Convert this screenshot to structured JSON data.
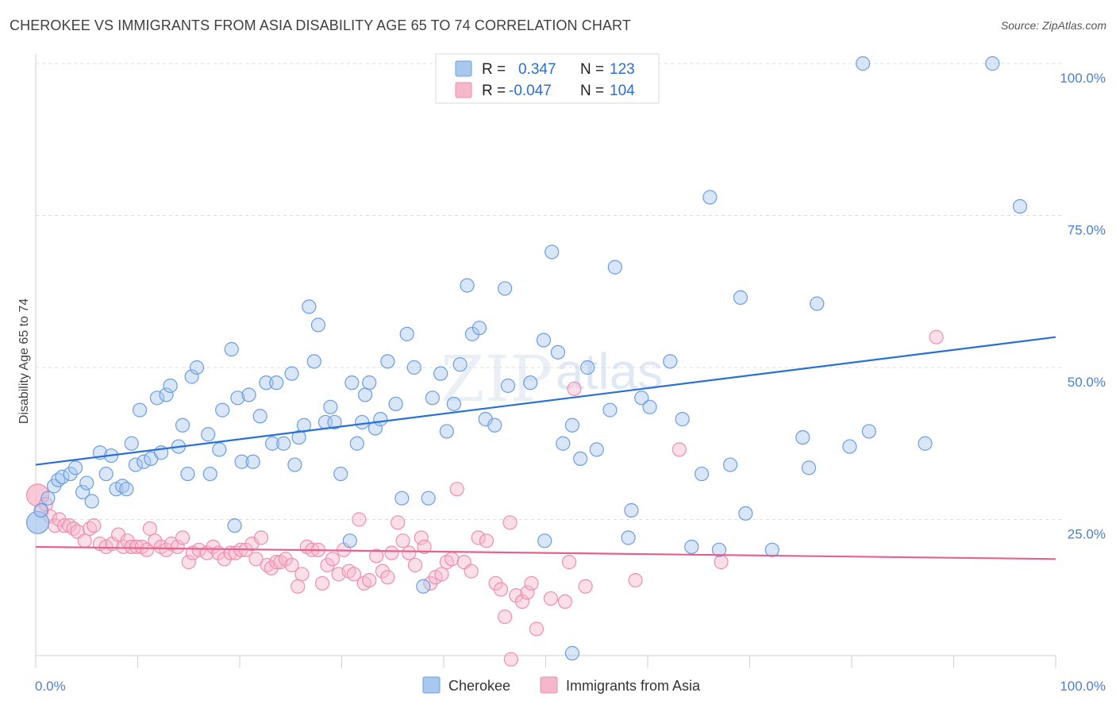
{
  "title": "CHEROKEE VS IMMIGRANTS FROM ASIA DISABILITY AGE 65 TO 74 CORRELATION CHART",
  "source": "Source: ZipAtlas.com",
  "watermark": {
    "zip": "ZIP",
    "atlas": "atlas"
  },
  "colors": {
    "cherokee_fill": "#a9c8ef",
    "cherokee_stroke": "#6b9ee0",
    "cherokee_line": "#2a6fd6",
    "asia_fill": "#f7b7cb",
    "asia_stroke": "#ec8fae",
    "asia_line": "#e5628f",
    "grid": "#dddddd",
    "axis_text": "#4a7fd4"
  },
  "legend": {
    "rows": [
      {
        "r_label": "R =",
        "r_value": "0.347",
        "n_label": "N =",
        "n_value": "123"
      },
      {
        "r_label": "R =",
        "r_value": "-0.047",
        "n_label": "N =",
        "n_value": "104"
      }
    ]
  },
  "bottom_legend": [
    "Cherokee",
    "Immigrants from Asia"
  ],
  "chart_data": {
    "type": "scatter",
    "title": "CHEROKEE VS IMMIGRANTS FROM ASIA DISABILITY AGE 65 TO 74 CORRELATION CHART",
    "xlabel": "",
    "ylabel": "Disability Age 65 to 74",
    "xlim": [
      0,
      100
    ],
    "ylim": [
      0,
      105
    ],
    "x_tick_labels": [
      "0.0%",
      "100.0%"
    ],
    "y_ticks": [
      25,
      50,
      75,
      100
    ],
    "y_tick_labels": [
      "25.0%",
      "50.0%",
      "75.0%",
      "100.0%"
    ],
    "grid": true,
    "legend_placement": "top-center",
    "series": [
      {
        "name": "Cherokee",
        "r": 0.347,
        "n": 123,
        "trend": [
          [
            0,
            34.0
          ],
          [
            100,
            55.0
          ]
        ],
        "points": [
          [
            0.2,
            24.5
          ],
          [
            0.5,
            26.5
          ],
          [
            1.2,
            28.5
          ],
          [
            1.8,
            30.5
          ],
          [
            2.2,
            31.5
          ],
          [
            2.6,
            32.0
          ],
          [
            3.4,
            32.5
          ],
          [
            3.9,
            33.5
          ],
          [
            4.6,
            29.5
          ],
          [
            5.0,
            31.0
          ],
          [
            5.5,
            28.0
          ],
          [
            6.3,
            36.0
          ],
          [
            6.9,
            32.5
          ],
          [
            7.4,
            35.5
          ],
          [
            7.9,
            30.0
          ],
          [
            8.5,
            30.5
          ],
          [
            8.9,
            30.0
          ],
          [
            9.4,
            37.5
          ],
          [
            9.8,
            34.0
          ],
          [
            10.2,
            43.0
          ],
          [
            10.6,
            34.5
          ],
          [
            11.3,
            35.0
          ],
          [
            11.9,
            45.0
          ],
          [
            12.3,
            36.0
          ],
          [
            12.8,
            45.5
          ],
          [
            13.2,
            47.0
          ],
          [
            14.0,
            37.0
          ],
          [
            14.4,
            40.5
          ],
          [
            14.9,
            32.5
          ],
          [
            15.3,
            48.5
          ],
          [
            15.8,
            50.0
          ],
          [
            16.9,
            39.0
          ],
          [
            17.1,
            32.5
          ],
          [
            18.0,
            36.5
          ],
          [
            18.3,
            43.0
          ],
          [
            19.2,
            53.0
          ],
          [
            19.5,
            24.0
          ],
          [
            19.8,
            45.0
          ],
          [
            20.2,
            34.5
          ],
          [
            20.9,
            45.5
          ],
          [
            21.3,
            34.5
          ],
          [
            22.0,
            42.0
          ],
          [
            22.6,
            47.5
          ],
          [
            23.2,
            37.5
          ],
          [
            23.6,
            47.5
          ],
          [
            24.3,
            37.5
          ],
          [
            25.1,
            49.0
          ],
          [
            25.4,
            34.0
          ],
          [
            25.8,
            38.5
          ],
          [
            26.3,
            40.5
          ],
          [
            26.8,
            60.0
          ],
          [
            27.3,
            51.0
          ],
          [
            27.7,
            57.0
          ],
          [
            28.4,
            41.0
          ],
          [
            28.9,
            43.5
          ],
          [
            29.3,
            41.0
          ],
          [
            29.9,
            32.5
          ],
          [
            30.8,
            21.5
          ],
          [
            31.0,
            47.5
          ],
          [
            31.5,
            37.5
          ],
          [
            32.0,
            41.0
          ],
          [
            32.3,
            45.5
          ],
          [
            32.7,
            47.5
          ],
          [
            33.3,
            40.0
          ],
          [
            33.8,
            41.5
          ],
          [
            34.5,
            51.0
          ],
          [
            35.3,
            44.0
          ],
          [
            35.9,
            28.5
          ],
          [
            36.4,
            55.5
          ],
          [
            37.1,
            50.0
          ],
          [
            38.0,
            14.0
          ],
          [
            38.5,
            28.5
          ],
          [
            38.9,
            45.0
          ],
          [
            39.7,
            49.0
          ],
          [
            40.3,
            39.5
          ],
          [
            41.0,
            44.0
          ],
          [
            41.6,
            50.5
          ],
          [
            42.3,
            63.5
          ],
          [
            42.8,
            55.5
          ],
          [
            43.5,
            56.5
          ],
          [
            44.1,
            41.5
          ],
          [
            45.0,
            40.5
          ],
          [
            46.0,
            63.0
          ],
          [
            46.3,
            47.0
          ],
          [
            48.5,
            47.5
          ],
          [
            49.8,
            54.5
          ],
          [
            49.9,
            21.5
          ],
          [
            50.6,
            69.0
          ],
          [
            51.2,
            52.5
          ],
          [
            51.7,
            37.5
          ],
          [
            52.6,
            40.5
          ],
          [
            53.4,
            35.0
          ],
          [
            54.1,
            50.0
          ],
          [
            55.0,
            36.5
          ],
          [
            56.3,
            43.0
          ],
          [
            56.8,
            66.5
          ],
          [
            58.1,
            22.0
          ],
          [
            58.4,
            26.5
          ],
          [
            59.4,
            45.0
          ],
          [
            60.2,
            43.5
          ],
          [
            62.2,
            51.0
          ],
          [
            63.4,
            41.5
          ],
          [
            64.3,
            20.5
          ],
          [
            65.3,
            32.5
          ],
          [
            66.1,
            78.0
          ],
          [
            67.0,
            20.0
          ],
          [
            68.1,
            34.0
          ],
          [
            69.1,
            61.5
          ],
          [
            69.6,
            26.0
          ],
          [
            72.2,
            20.0
          ],
          [
            75.2,
            38.5
          ],
          [
            75.8,
            33.5
          ],
          [
            76.6,
            60.5
          ],
          [
            79.8,
            37.0
          ],
          [
            81.1,
            100.0
          ],
          [
            81.7,
            39.5
          ],
          [
            87.2,
            37.5
          ],
          [
            93.8,
            100.0
          ],
          [
            96.5,
            76.5
          ],
          [
            52.6,
            3.0
          ]
        ]
      },
      {
        "name": "Immigrants from Asia",
        "r": -0.047,
        "n": 104,
        "trend": [
          [
            0,
            20.5
          ],
          [
            100,
            18.5
          ]
        ],
        "points": [
          [
            0.2,
            29.0
          ],
          [
            0.6,
            26.5
          ],
          [
            1.0,
            27.5
          ],
          [
            1.4,
            25.5
          ],
          [
            1.9,
            24.0
          ],
          [
            2.3,
            25.0
          ],
          [
            2.8,
            24.0
          ],
          [
            3.3,
            24.0
          ],
          [
            3.7,
            23.5
          ],
          [
            4.1,
            23.0
          ],
          [
            4.8,
            21.5
          ],
          [
            5.3,
            23.5
          ],
          [
            5.7,
            24.0
          ],
          [
            6.3,
            21.0
          ],
          [
            6.9,
            20.5
          ],
          [
            7.5,
            21.0
          ],
          [
            8.1,
            22.5
          ],
          [
            8.6,
            20.5
          ],
          [
            9.0,
            21.5
          ],
          [
            9.4,
            20.5
          ],
          [
            9.9,
            20.5
          ],
          [
            10.4,
            20.5
          ],
          [
            10.9,
            20.0
          ],
          [
            11.2,
            23.5
          ],
          [
            11.7,
            21.5
          ],
          [
            12.3,
            20.5
          ],
          [
            12.8,
            20.0
          ],
          [
            13.3,
            21.0
          ],
          [
            13.9,
            20.5
          ],
          [
            14.4,
            22.0
          ],
          [
            15.0,
            18.0
          ],
          [
            15.4,
            19.5
          ],
          [
            16.0,
            20.0
          ],
          [
            16.8,
            19.5
          ],
          [
            17.4,
            20.5
          ],
          [
            17.9,
            19.5
          ],
          [
            18.5,
            18.5
          ],
          [
            19.1,
            19.5
          ],
          [
            19.6,
            19.5
          ],
          [
            20.1,
            20.0
          ],
          [
            20.6,
            20.0
          ],
          [
            21.2,
            21.0
          ],
          [
            21.6,
            18.5
          ],
          [
            22.1,
            22.0
          ],
          [
            22.7,
            17.5
          ],
          [
            23.1,
            17.0
          ],
          [
            23.6,
            18.0
          ],
          [
            24.0,
            18.0
          ],
          [
            24.5,
            18.5
          ],
          [
            25.1,
            17.5
          ],
          [
            25.7,
            14.0
          ],
          [
            26.1,
            16.0
          ],
          [
            26.6,
            20.5
          ],
          [
            27.1,
            20.0
          ],
          [
            27.7,
            20.0
          ],
          [
            28.1,
            14.5
          ],
          [
            28.6,
            17.5
          ],
          [
            29.1,
            18.5
          ],
          [
            29.7,
            16.0
          ],
          [
            30.2,
            20.0
          ],
          [
            30.7,
            16.5
          ],
          [
            31.2,
            16.0
          ],
          [
            31.7,
            25.0
          ],
          [
            32.2,
            14.5
          ],
          [
            32.7,
            15.0
          ],
          [
            33.4,
            19.0
          ],
          [
            34.0,
            16.5
          ],
          [
            34.5,
            15.5
          ],
          [
            34.9,
            19.5
          ],
          [
            35.5,
            24.5
          ],
          [
            36.0,
            21.5
          ],
          [
            36.6,
            19.5
          ],
          [
            37.2,
            17.5
          ],
          [
            37.8,
            22.0
          ],
          [
            38.1,
            20.5
          ],
          [
            38.7,
            14.5
          ],
          [
            39.2,
            15.5
          ],
          [
            39.8,
            16.0
          ],
          [
            40.3,
            18.0
          ],
          [
            40.8,
            18.5
          ],
          [
            41.3,
            30.0
          ],
          [
            42.0,
            18.0
          ],
          [
            42.7,
            16.5
          ],
          [
            43.4,
            22.0
          ],
          [
            44.2,
            21.5
          ],
          [
            45.1,
            14.5
          ],
          [
            45.6,
            13.5
          ],
          [
            46.0,
            9.0
          ],
          [
            46.5,
            24.5
          ],
          [
            47.1,
            12.5
          ],
          [
            47.7,
            11.5
          ],
          [
            48.2,
            13.0
          ],
          [
            48.6,
            14.5
          ],
          [
            49.1,
            7.0
          ],
          [
            50.5,
            12.0
          ],
          [
            51.9,
            11.5
          ],
          [
            52.3,
            18.0
          ],
          [
            52.8,
            46.5
          ],
          [
            53.9,
            14.0
          ],
          [
            58.8,
            15.0
          ],
          [
            63.1,
            36.5
          ],
          [
            67.2,
            18.0
          ],
          [
            88.3,
            55.0
          ],
          [
            46.6,
            2.0
          ]
        ]
      }
    ]
  }
}
